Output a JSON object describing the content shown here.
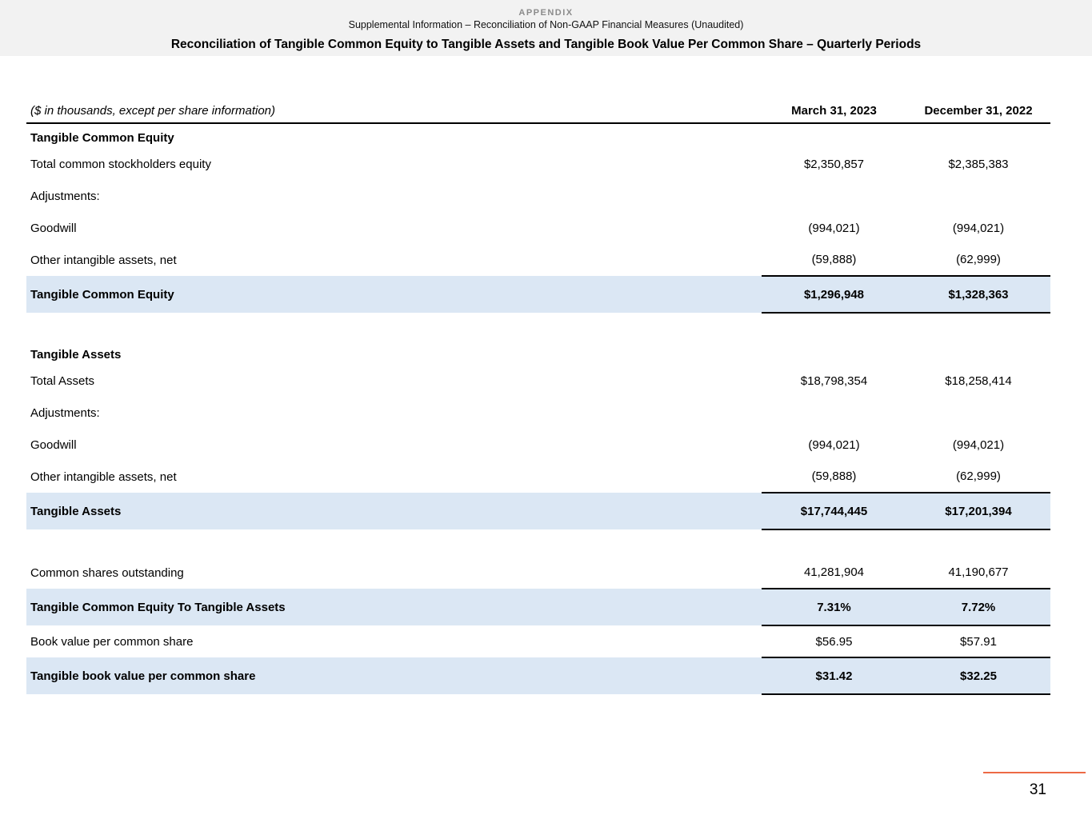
{
  "header": {
    "appendix": "APPENDIX",
    "subtitle": "Supplemental Information – Reconciliation of Non-GAAP Financial Measures (Unaudited)",
    "title": "Reconciliation of Tangible Common Equity to Tangible Assets and Tangible Book Value Per Common Share – Quarterly Periods"
  },
  "table": {
    "caption": "($ in thousands, except per share information)",
    "columns": [
      "March 31, 2023",
      "December 31, 2022"
    ],
    "rows": [
      {
        "style": "section",
        "label": "Tangible Common Equity",
        "v1": "",
        "v2": ""
      },
      {
        "style": "plain",
        "label": "Total common stockholders equity",
        "v1": "$2,350,857",
        "v2": "$2,385,383"
      },
      {
        "style": "plain",
        "label": "Adjustments:",
        "v1": "",
        "v2": ""
      },
      {
        "style": "plain",
        "label": "Goodwill",
        "v1": "(994,021)",
        "v2": "(994,021)"
      },
      {
        "style": "plain",
        "label": "Other intangible assets, net",
        "v1": "(59,888)",
        "v2": "(62,999)"
      },
      {
        "style": "total",
        "rules": "tb",
        "label": "Tangible Common Equity",
        "v1": "$1,296,948",
        "v2": "$1,328,363"
      },
      {
        "style": "spacer",
        "label": "",
        "v1": "",
        "v2": ""
      },
      {
        "style": "section",
        "label": "Tangible Assets",
        "v1": "",
        "v2": ""
      },
      {
        "style": "plain",
        "label": "Total Assets",
        "v1": "$18,798,354",
        "v2": "$18,258,414"
      },
      {
        "style": "plain",
        "label": "Adjustments:",
        "v1": "",
        "v2": ""
      },
      {
        "style": "plain",
        "label": "Goodwill",
        "v1": "(994,021)",
        "v2": "(994,021)"
      },
      {
        "style": "plain",
        "label": "Other intangible assets, net",
        "v1": "(59,888)",
        "v2": "(62,999)"
      },
      {
        "style": "total",
        "rules": "tb",
        "label": "Tangible Assets",
        "v1": "$17,744,445",
        "v2": "$17,201,394"
      },
      {
        "style": "spacer",
        "label": "",
        "v1": "",
        "v2": ""
      },
      {
        "style": "plain",
        "label": "Common shares outstanding",
        "v1": "41,281,904",
        "v2": "41,190,677"
      },
      {
        "style": "total",
        "rules": "tb",
        "label": "Tangible Common Equity To Tangible Assets",
        "v1": "7.31%",
        "v2": "7.72%"
      },
      {
        "style": "plain",
        "rules": "b",
        "label": "Book value per common share",
        "v1": "$56.95",
        "v2": "$57.91"
      },
      {
        "style": "total",
        "rules": "b",
        "label": "Tangible book value per common share",
        "v1": "$31.42",
        "v2": "$32.25"
      }
    ]
  },
  "footer": {
    "page_number": "31"
  },
  "colors": {
    "band_bg": "#f2f2f2",
    "highlight": "#dbe7f4",
    "accent": "#ed6a45",
    "muted_text": "#8b8b8b"
  }
}
